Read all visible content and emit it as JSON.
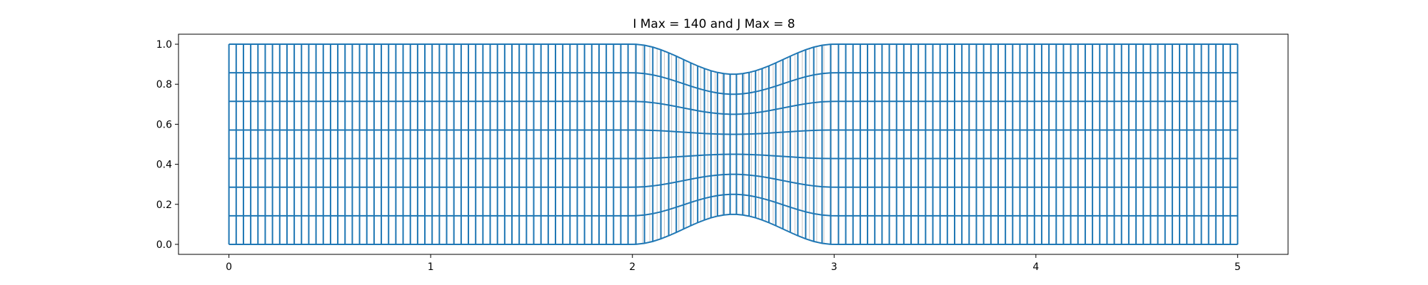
{
  "chart_data": {
    "type": "line",
    "title": "I Max = 140 and J Max = 8",
    "xlabel": "",
    "ylabel": "",
    "xlim": [
      -0.25,
      5.25
    ],
    "ylim": [
      -0.05,
      1.05
    ],
    "x_ticks": [
      0,
      1,
      2,
      3,
      4,
      5
    ],
    "x_tick_labels": [
      "0",
      "1",
      "2",
      "3",
      "4",
      "5"
    ],
    "y_ticks": [
      0.0,
      0.2,
      0.4,
      0.6,
      0.8,
      1.0
    ],
    "y_tick_labels": [
      "0.0",
      "0.2",
      "0.4",
      "0.6",
      "0.8",
      "1.0"
    ],
    "grid": false,
    "legend": "none",
    "i_max": 140,
    "j_max": 8,
    "domain": {
      "x_start": 0,
      "x_end": 5,
      "bump_start": 2,
      "bump_end": 3,
      "bump_center": 2.5,
      "bottom_wall_peak": 0.15,
      "top_wall_min": 0.85
    },
    "series": [
      {
        "values": [],
        "color": "#c8c8c8"
      },
      {
        "values": [],
        "color": "#1f77b4"
      }
    ]
  }
}
